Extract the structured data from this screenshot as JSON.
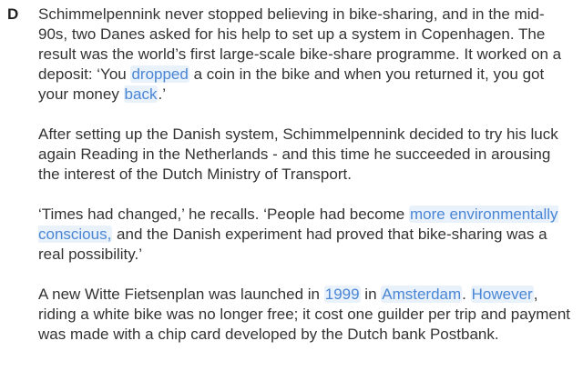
{
  "section": {
    "letter": "D",
    "paragraphs": [
      {
        "segments": [
          {
            "text": "Schimmelpennink never stopped believing in bike-sharing, and in the mid-90s, two Danes asked for his help to set up a system in Copenhagen. The result was the world’s first large-scale bike-share programme. It worked on a deposit: ‘You ",
            "highlight": false
          },
          {
            "text": "dropped",
            "highlight": true
          },
          {
            "text": " a coin in the bike and when you returned it, you got your money ",
            "highlight": false
          },
          {
            "text": "back",
            "highlight": true
          },
          {
            "text": ".’",
            "highlight": false
          }
        ]
      },
      {
        "segments": [
          {
            "text": "After setting up the Danish system, Schimmelpennink decided to try his luck again Reading in the Netherlands - and this time he succeeded in arousing the interest of the Dutch Ministry of Transport.",
            "highlight": false
          }
        ]
      },
      {
        "segments": [
          {
            "text": "‘Times had changed,’ he recalls. ‘People had become ",
            "highlight": false
          },
          {
            "text": "more environmentally conscious,",
            "highlight": true
          },
          {
            "text": " and the Danish experiment had proved that bike-sharing was a real possibility.’",
            "highlight": false
          }
        ]
      },
      {
        "segments": [
          {
            "text": "A new Witte Fietsenplan was launched in ",
            "highlight": false
          },
          {
            "text": "1999",
            "highlight": true
          },
          {
            "text": " in ",
            "highlight": false
          },
          {
            "text": "Amsterdam",
            "highlight": true
          },
          {
            "text": ". ",
            "highlight": false
          },
          {
            "text": "However",
            "highlight": true
          },
          {
            "text": ", riding a white bike was no longer free; it cost one guilder per trip and payment was made with a chip card developed by the Dutch bank Postbank.",
            "highlight": false
          }
        ]
      }
    ]
  },
  "colors": {
    "text": "#333333",
    "highlight_text": "#4a86d4",
    "highlight_background": "#e9f1fb"
  }
}
